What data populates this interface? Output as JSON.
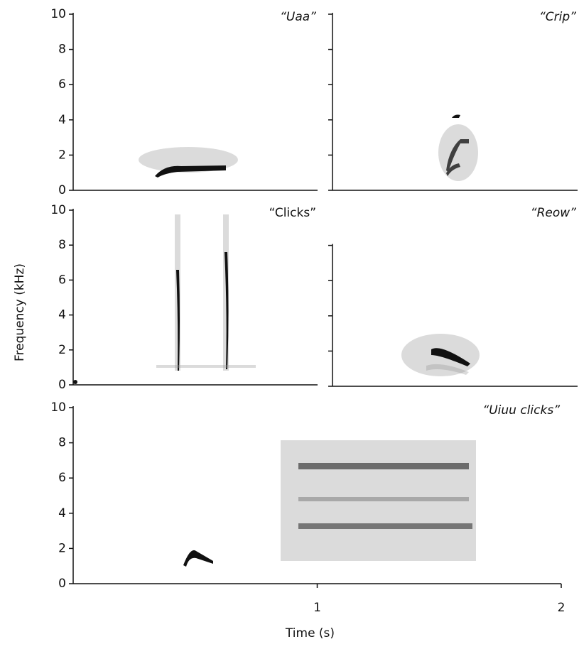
{
  "chart_data": [
    {
      "type": "spectrogram",
      "title": "“Uaa”",
      "italic": true,
      "ylim": [
        0,
        10
      ],
      "yticks": [
        0,
        2,
        4,
        6,
        8,
        10
      ],
      "tick_labels": true
    },
    {
      "type": "spectrogram",
      "title": "“Crip”",
      "italic": true,
      "ylim": [
        0,
        10
      ],
      "yticks": [
        0,
        2,
        4,
        6,
        8,
        10
      ],
      "tick_labels": false
    },
    {
      "type": "spectrogram",
      "title": "“Clicks”",
      "italic": false,
      "ylim": [
        0,
        10
      ],
      "yticks": [
        0,
        2,
        4,
        6,
        8,
        10
      ],
      "tick_labels": true,
      "ylabel": "Frequency (kHz)"
    },
    {
      "type": "spectrogram",
      "title": "“Reow”",
      "italic": true,
      "ylim": [
        0,
        10
      ],
      "yticks": [
        0,
        2,
        4,
        6,
        8
      ],
      "tick_labels": false
    },
    {
      "type": "spectrogram",
      "title": "“Uiuu clicks”",
      "italic": true,
      "ylim": [
        0,
        10
      ],
      "yticks": [
        0,
        2,
        4,
        6,
        8,
        10
      ],
      "tick_labels": true,
      "xlim": [
        0,
        2
      ],
      "xticks": [
        1,
        2
      ],
      "xlabel": "Time (s)"
    }
  ]
}
